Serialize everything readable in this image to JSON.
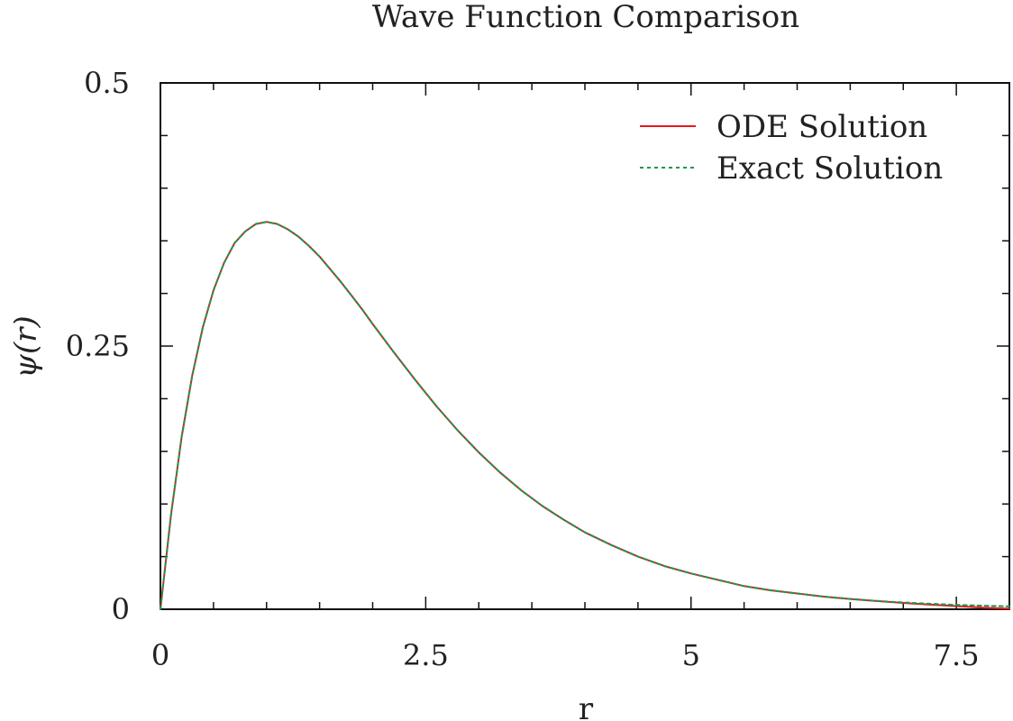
{
  "chart_data": {
    "type": "line",
    "title": "Wave Function Comparison",
    "xlabel": "r",
    "ylabel": "ψ(r)",
    "xlim": [
      0,
      8
    ],
    "ylim": [
      0,
      0.5
    ],
    "x_ticks": [
      0,
      2.5,
      5,
      7.5
    ],
    "x_tick_labels": [
      "0",
      "2.5",
      "5",
      "7.5"
    ],
    "y_ticks": [
      0,
      0.25,
      0.5
    ],
    "y_tick_labels": [
      "0",
      "0.25",
      "0.5"
    ],
    "grid": false,
    "legend_position": "top-right",
    "series": [
      {
        "name": "ODE Solution",
        "color": "#e41a1c",
        "style": "solid",
        "x": [
          0,
          0.1,
          0.2,
          0.3,
          0.4,
          0.5,
          0.6,
          0.7,
          0.8,
          0.9,
          1.0,
          1.1,
          1.2,
          1.3,
          1.4,
          1.5,
          1.6,
          1.7,
          1.8,
          1.9,
          2.0,
          2.2,
          2.4,
          2.6,
          2.8,
          3.0,
          3.2,
          3.4,
          3.6,
          3.8,
          4.0,
          4.25,
          4.5,
          4.75,
          5.0,
          5.25,
          5.5,
          5.75,
          6.0,
          6.25,
          6.5,
          6.75,
          7.0,
          7.25,
          7.5,
          7.75,
          8.0
        ],
        "values": [
          0,
          0.09,
          0.164,
          0.222,
          0.268,
          0.303,
          0.329,
          0.348,
          0.359,
          0.366,
          0.368,
          0.366,
          0.361,
          0.354,
          0.345,
          0.335,
          0.323,
          0.311,
          0.298,
          0.285,
          0.271,
          0.244,
          0.218,
          0.193,
          0.17,
          0.149,
          0.13,
          0.113,
          0.098,
          0.085,
          0.073,
          0.061,
          0.05,
          0.041,
          0.034,
          0.028,
          0.022,
          0.018,
          0.015,
          0.012,
          0.0098,
          0.0078,
          0.006,
          0.0044,
          0.003,
          0.0015,
          0.0005
        ]
      },
      {
        "name": "Exact Solution",
        "color": "#1a9850",
        "style": "dotted",
        "x": [
          0,
          0.1,
          0.2,
          0.3,
          0.4,
          0.5,
          0.6,
          0.7,
          0.8,
          0.9,
          1.0,
          1.1,
          1.2,
          1.3,
          1.4,
          1.5,
          1.6,
          1.7,
          1.8,
          1.9,
          2.0,
          2.2,
          2.4,
          2.6,
          2.8,
          3.0,
          3.2,
          3.4,
          3.6,
          3.8,
          4.0,
          4.25,
          4.5,
          4.75,
          5.0,
          5.25,
          5.5,
          5.75,
          6.0,
          6.25,
          6.5,
          6.75,
          7.0,
          7.25,
          7.5,
          7.75,
          8.0
        ],
        "values": [
          0,
          0.09,
          0.164,
          0.222,
          0.268,
          0.303,
          0.329,
          0.348,
          0.359,
          0.366,
          0.368,
          0.366,
          0.361,
          0.354,
          0.345,
          0.335,
          0.323,
          0.311,
          0.298,
          0.285,
          0.271,
          0.244,
          0.218,
          0.193,
          0.17,
          0.149,
          0.13,
          0.113,
          0.098,
          0.085,
          0.073,
          0.061,
          0.05,
          0.041,
          0.034,
          0.028,
          0.022,
          0.018,
          0.015,
          0.012,
          0.0098,
          0.0079,
          0.0064,
          0.0052,
          0.0041,
          0.0033,
          0.0027
        ]
      }
    ]
  }
}
